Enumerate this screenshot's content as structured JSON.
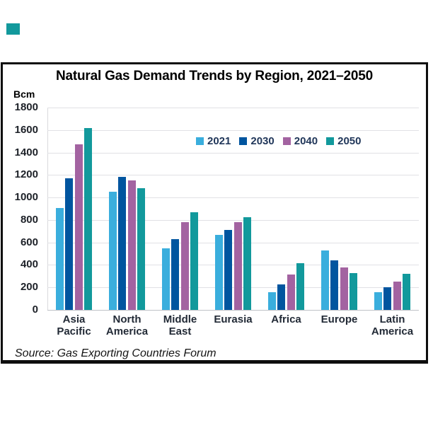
{
  "page": {
    "title": "Natural Gas Demand Trends by Region, 2021–2050",
    "unit_label": "Bcm",
    "source": "Source: Gas Exporting Countries Forum"
  },
  "colors": {
    "series_2021": "#3aaedd",
    "series_2030": "#00559f",
    "series_2040": "#a363a1",
    "series_2050": "#12999c",
    "gridline": "#e1e1e5",
    "frame": "#0e0e0e",
    "corner_mark": "#12999c"
  },
  "chart_data": {
    "type": "bar",
    "title": "Natural Gas Demand Trends by Region, 2021–2050",
    "xlabel": "",
    "ylabel": "Bcm",
    "ylim": [
      0,
      1800
    ],
    "ytick_step": 200,
    "yticks": [
      0,
      200,
      400,
      600,
      800,
      1000,
      1200,
      1400,
      1600,
      1800
    ],
    "grid": true,
    "legend_position": "inside-top-right",
    "categories": [
      "Asia Pacific",
      "North America",
      "Middle East",
      "Eurasia",
      "Africa",
      "Europe",
      "Latin America"
    ],
    "category_lines": [
      [
        "Asia",
        "Pacific"
      ],
      [
        "North",
        "America"
      ],
      [
        "Middle",
        "East"
      ],
      [
        "Eurasia"
      ],
      [
        "Africa"
      ],
      [
        "Europe"
      ],
      [
        "Latin",
        "America"
      ]
    ],
    "series": [
      {
        "name": "2021",
        "color": "#3aaedd",
        "values": [
          905,
          1050,
          545,
          670,
          160,
          530,
          160
        ]
      },
      {
        "name": "2030",
        "color": "#00559f",
        "values": [
          1170,
          1185,
          630,
          710,
          230,
          440,
          200
        ]
      },
      {
        "name": "2040",
        "color": "#a363a1",
        "values": [
          1475,
          1150,
          780,
          780,
          315,
          380,
          255
        ]
      },
      {
        "name": "2050",
        "color": "#12999c",
        "values": [
          1620,
          1085,
          870,
          825,
          415,
          330,
          320
        ]
      }
    ],
    "source": "Source: Gas Exporting Countries Forum"
  }
}
